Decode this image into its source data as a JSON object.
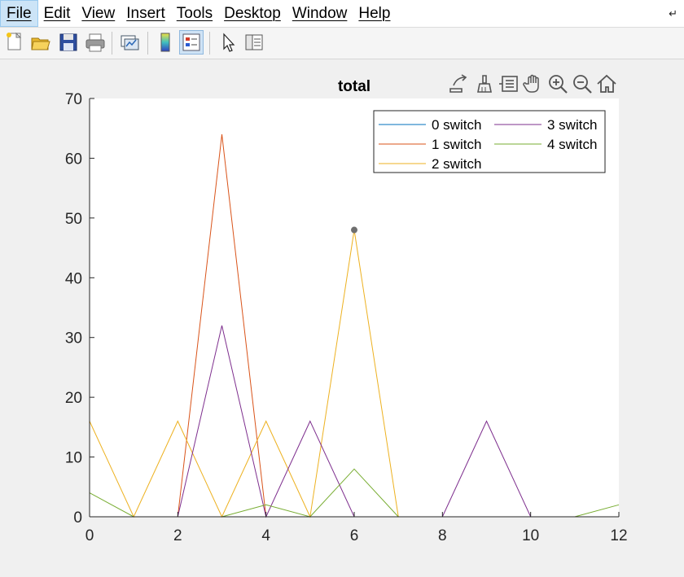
{
  "menu": {
    "items": [
      {
        "label": "File",
        "active": true
      },
      {
        "label": "Edit",
        "active": false
      },
      {
        "label": "View",
        "active": false
      },
      {
        "label": "Insert",
        "active": false
      },
      {
        "label": "Tools",
        "active": false
      },
      {
        "label": "Desktop",
        "active": false
      },
      {
        "label": "Window",
        "active": false
      },
      {
        "label": "Help",
        "active": false
      }
    ]
  },
  "toolbar": {
    "buttons": [
      {
        "name": "new-figure-icon"
      },
      {
        "name": "open-file-icon"
      },
      {
        "name": "save-icon"
      },
      {
        "name": "print-icon"
      },
      {
        "name": "link-plot-icon"
      },
      {
        "name": "insert-colorbar-icon"
      },
      {
        "name": "insert-legend-icon",
        "pressed": true
      },
      {
        "name": "edit-plot-icon"
      },
      {
        "name": "property-inspector-icon"
      }
    ]
  },
  "axes_toolbar": [
    "export-icon",
    "brush-icon",
    "data-tips-icon",
    "pan-icon",
    "zoom-in-icon",
    "zoom-out-icon",
    "home-icon"
  ],
  "colors": {
    "series_0": "#0072bd",
    "series_1": "#d95319",
    "series_2": "#edb120",
    "series_3": "#7e2f8e",
    "series_4": "#77ac30"
  },
  "chart_data": {
    "type": "line",
    "title": "total",
    "xlabel": "",
    "ylabel": "",
    "xlim": [
      0,
      12
    ],
    "ylim": [
      0,
      70
    ],
    "xticks": [
      0,
      2,
      4,
      6,
      8,
      10,
      12
    ],
    "yticks": [
      0,
      10,
      20,
      30,
      40,
      50,
      60,
      70
    ],
    "grid": false,
    "legend_position": "top-right",
    "x": [
      0,
      1,
      2,
      3,
      4,
      5,
      6,
      7,
      8,
      9,
      10,
      11,
      12
    ],
    "series": [
      {
        "name": "0 switch",
        "color": "#0072bd",
        "values": [
          0,
          0,
          0,
          0,
          0,
          0,
          0,
          0,
          0,
          0,
          0,
          0,
          0
        ]
      },
      {
        "name": "1 switch",
        "color": "#d95319",
        "values": [
          0,
          0,
          0,
          64,
          0,
          0,
          0,
          0,
          0,
          0,
          0,
          0,
          0
        ]
      },
      {
        "name": "2 switch",
        "color": "#edb120",
        "values": [
          16,
          0,
          16,
          0,
          16,
          0,
          48,
          0,
          0,
          0,
          0,
          0,
          0
        ]
      },
      {
        "name": "3 switch",
        "color": "#7e2f8e",
        "values": [
          0,
          0,
          0,
          32,
          0,
          16,
          0,
          0,
          0,
          16,
          0,
          0,
          0
        ]
      },
      {
        "name": "4 switch",
        "color": "#77ac30",
        "values": [
          4,
          0,
          0,
          0,
          2,
          0,
          8,
          0,
          0,
          0,
          0,
          0,
          2
        ]
      }
    ],
    "datatip": {
      "x": 6,
      "y": 48
    }
  }
}
